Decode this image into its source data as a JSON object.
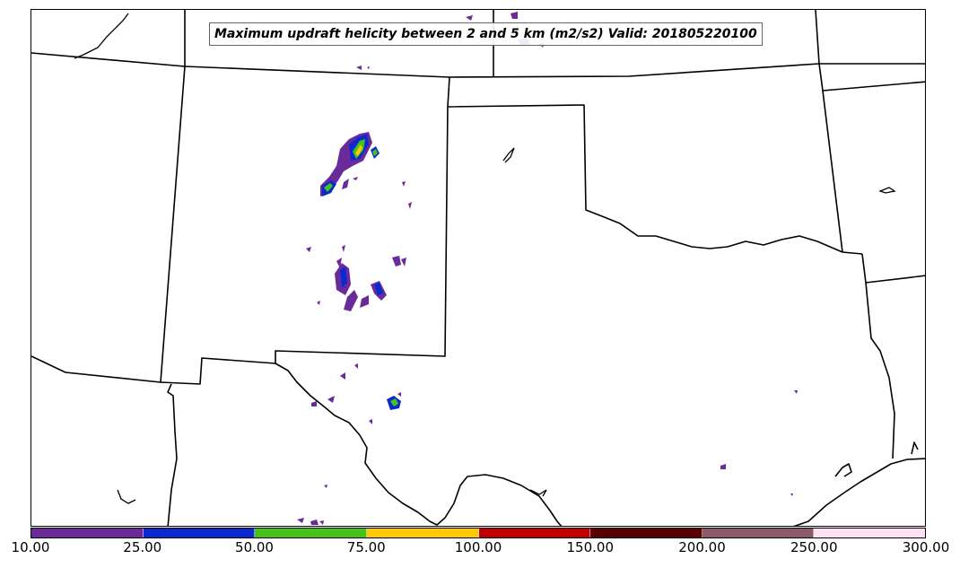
{
  "title": "Maximum updraft helicity between 2 and 5 km (m2/s2) Valid: 201805220100",
  "colorbar": {
    "tick_labels": [
      "10.00",
      "25.00",
      "50.00",
      "75.00",
      "100.00",
      "150.00",
      "200.00",
      "250.00",
      "300.00"
    ],
    "colors": [
      "#6a2a9a",
      "#0a2ad0",
      "#44c41a",
      "#ffc800",
      "#c00000",
      "#5a0000",
      "#8a5a6a",
      "#ffe0f5"
    ]
  },
  "map": {
    "region": "Southern Plains — New Mexico, Texas, Oklahoma",
    "field_colors": {
      "low": "#6a2a9a",
      "mid": "#0a2ad0",
      "high": "#44c41a",
      "peak": "#ffc800"
    }
  }
}
